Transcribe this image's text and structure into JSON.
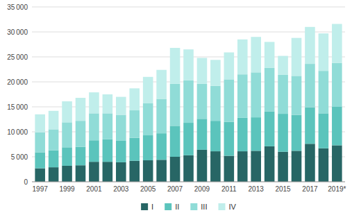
{
  "chart_data": {
    "type": "bar",
    "stacked": true,
    "grid": true,
    "legend": "bottom",
    "categories": [
      "1997",
      null,
      "1999",
      null,
      "2001",
      null,
      "2003",
      null,
      "2005",
      null,
      "2007",
      null,
      "2009",
      null,
      "2011",
      null,
      "2013",
      null,
      "2015",
      null,
      "2017",
      null,
      "2019*"
    ],
    "series": [
      {
        "name": "I",
        "color": "#276665",
        "values": [
          2700,
          2900,
          3200,
          3300,
          4000,
          4000,
          3900,
          4200,
          4300,
          4400,
          5000,
          5300,
          6400,
          6100,
          5200,
          6100,
          6200,
          7100,
          6000,
          6200,
          7600,
          6700,
          7300
        ]
      },
      {
        "name": "II",
        "color": "#5bc4bc",
        "values": [
          3200,
          3400,
          3700,
          3700,
          4300,
          4500,
          4300,
          4600,
          5000,
          5300,
          6200,
          6500,
          6200,
          6100,
          6800,
          6700,
          6700,
          7000,
          7600,
          7200,
          7300,
          7000,
          7700
        ]
      },
      {
        "name": "III",
        "color": "#90dcd7",
        "values": [
          4000,
          4200,
          5000,
          5200,
          5400,
          5200,
          5200,
          5500,
          6400,
          6900,
          8400,
          8500,
          7000,
          7000,
          8500,
          8700,
          9000,
          8700,
          7800,
          7800,
          8700,
          8500,
          8800
        ]
      },
      {
        "name": "IV",
        "color": "#c0eeeb",
        "values": [
          3600,
          3700,
          4200,
          4600,
          4200,
          3800,
          3600,
          4400,
          5300,
          5800,
          7200,
          6200,
          5200,
          5200,
          5400,
          7000,
          7100,
          5200,
          3800,
          7600,
          7400,
          7500,
          7800
        ]
      }
    ],
    "ylim": [
      0,
      35000
    ],
    "yticks": [
      0,
      {
        "value": 5000,
        "label": "5 000"
      },
      {
        "value": 10000,
        "label": "10 000"
      },
      {
        "value": 15000,
        "label": "15 000"
      },
      {
        "value": 20000,
        "label": "20 000"
      },
      {
        "value": 25000,
        "label": "25 000"
      },
      {
        "value": 30000,
        "label": "30 000"
      },
      {
        "value": 35000,
        "label": "35 000"
      }
    ]
  }
}
